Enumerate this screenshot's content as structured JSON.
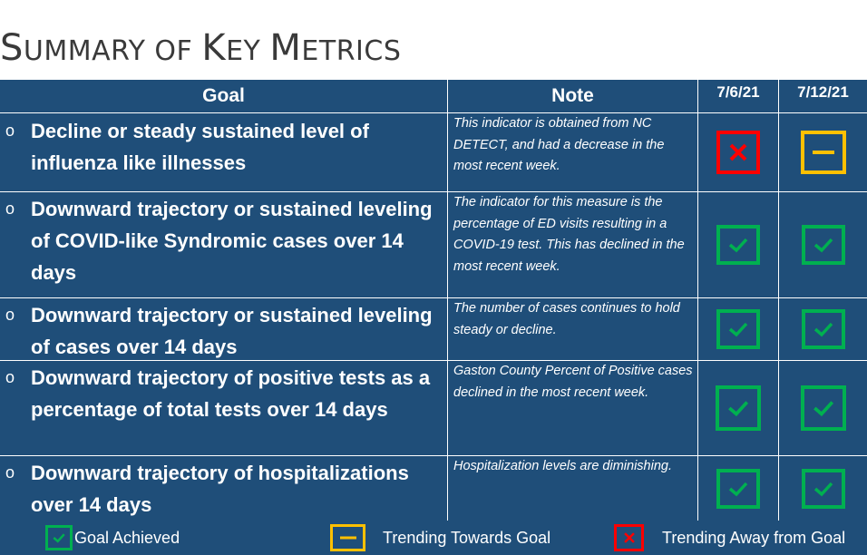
{
  "title": {
    "s": "S",
    "rest1": "UMMARY OF ",
    "k": "K",
    "rest2": "EY ",
    "m": "M",
    "rest3": "ETRICS"
  },
  "table": {
    "headers": {
      "goal": "Goal",
      "note": "Note",
      "date1": "7/6/21",
      "date2": "7/12/21"
    },
    "rows": [
      {
        "bullet": "o",
        "goal": "Decline or steady sustained level of influenza like illnesses",
        "note": "This indicator is obtained from NC DETECT, and had a decrease in the most recent week.",
        "status1": "trending-away",
        "status2": "trending-towards"
      },
      {
        "bullet": "o",
        "goal": "Downward trajectory or sustained leveling of COVID-like Syndromic cases over 14 days",
        "note": "The indicator for this measure is the percentage of ED visits resulting in a COVID-19 test. This has declined in the most recent week.",
        "status1": "achieved",
        "status2": "achieved"
      },
      {
        "bullet": "o",
        "goal": "Downward trajectory or sustained leveling of  cases over 14 days",
        "note": "The number of cases continues to hold steady or decline.",
        "status1": "achieved",
        "status2": "achieved"
      },
      {
        "bullet": "o",
        "goal": "Downward trajectory  of positive tests as a percentage of total tests over 14 days",
        "note": "Gaston County Percent of Positive cases declined in the most recent week.",
        "status1": "achieved",
        "status2": "achieved"
      },
      {
        "bullet": "o",
        "goal": "Downward trajectory  of hospitalizations over 14 days",
        "note": "Hospitalization levels are diminishing.",
        "status1": "achieved",
        "status2": "achieved"
      }
    ]
  },
  "legend": {
    "achieved": "Goal Achieved",
    "towards": "Trending Towards Goal",
    "away": "Trending Away from Goal"
  },
  "colors": {
    "background": "#1f4e79",
    "achieved": "#00b050",
    "towards": "#ffc000",
    "away": "#ff0000"
  },
  "icons": {
    "achieved": "check-icon",
    "towards": "dash-icon",
    "away": "x-icon"
  }
}
